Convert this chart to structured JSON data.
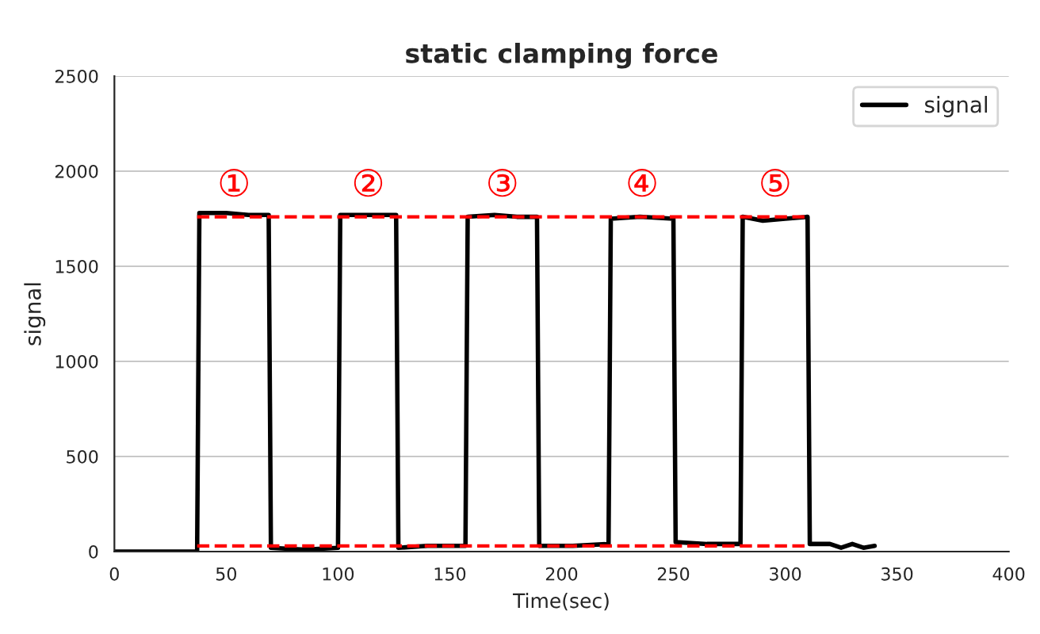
{
  "chart_data": {
    "type": "line",
    "title": "static clamping force",
    "xlabel": "Time(sec)",
    "ylabel": "signal",
    "xlim": [
      0,
      400
    ],
    "xticks": [
      0,
      50,
      100,
      150,
      200,
      250,
      300,
      350,
      400
    ],
    "ylim": [
      0,
      2500
    ],
    "yticks": [
      0,
      500,
      1000,
      1500,
      2000,
      2500
    ],
    "grid": "y",
    "legend": "top right",
    "line_style": "solid",
    "marker": "none",
    "series": [
      {
        "name": "signal",
        "color": "#000000",
        "x": [
          0,
          20,
          37,
          38,
          50,
          60,
          69,
          70,
          85,
          100,
          101,
          110,
          120,
          126,
          127,
          140,
          157,
          158,
          170,
          180,
          189,
          190,
          205,
          221,
          222,
          235,
          250,
          251,
          265,
          280,
          281,
          290,
          300,
          310,
          311,
          320,
          325,
          330,
          335,
          340
        ],
        "values": [
          0,
          0,
          0,
          1780,
          1780,
          1770,
          1770,
          20,
          10,
          20,
          1770,
          1770,
          1770,
          1770,
          20,
          30,
          30,
          1760,
          1770,
          1760,
          1760,
          30,
          30,
          40,
          1750,
          1760,
          1750,
          50,
          40,
          40,
          1760,
          1740,
          1750,
          1760,
          40,
          40,
          20,
          40,
          20,
          30
        ]
      },
      {
        "color": "#ff0000",
        "line_style": "dashed",
        "x": [
          37,
          311
        ],
        "values": [
          1760,
          1760
        ]
      },
      {
        "color": "#ff0000",
        "line_style": "dashed",
        "x": [
          37,
          311
        ],
        "values": [
          30,
          30
        ]
      }
    ],
    "annotations": [
      "①",
      "②",
      "③",
      "④",
      "⑤"
    ]
  }
}
